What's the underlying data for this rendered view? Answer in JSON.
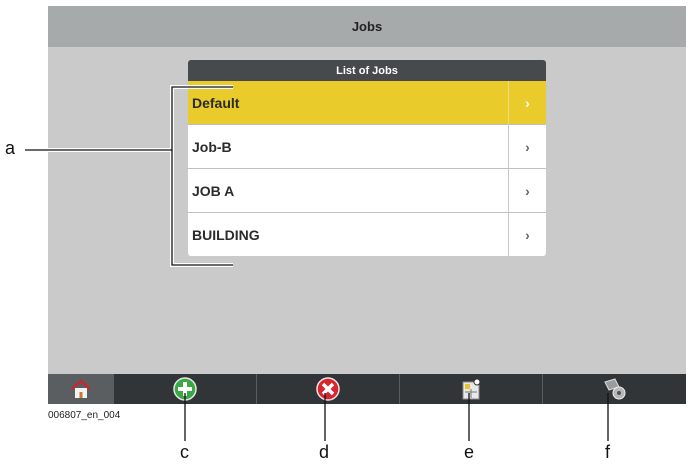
{
  "header": {
    "title": "Jobs"
  },
  "list": {
    "title": "List of Jobs",
    "items": [
      {
        "label": "Default",
        "selected": true
      },
      {
        "label": "Job-B",
        "selected": false
      },
      {
        "label": "JOB A",
        "selected": false
      },
      {
        "label": "BUILDING",
        "selected": false
      }
    ],
    "chevron": "›"
  },
  "toolbar": {
    "buttons": [
      {
        "icon": "home-icon"
      },
      {
        "icon": "add-icon"
      },
      {
        "icon": "delete-icon"
      },
      {
        "icon": "job-data-icon"
      },
      {
        "icon": "instrument-settings-icon"
      }
    ]
  },
  "annotations": {
    "a": "a",
    "c": "c",
    "d": "d",
    "e": "e",
    "f": "f",
    "figure_id": "006807_en_004"
  },
  "colors": {
    "selected": "#e9cb2b",
    "add": "#3aa845",
    "delete": "#d8262f"
  }
}
